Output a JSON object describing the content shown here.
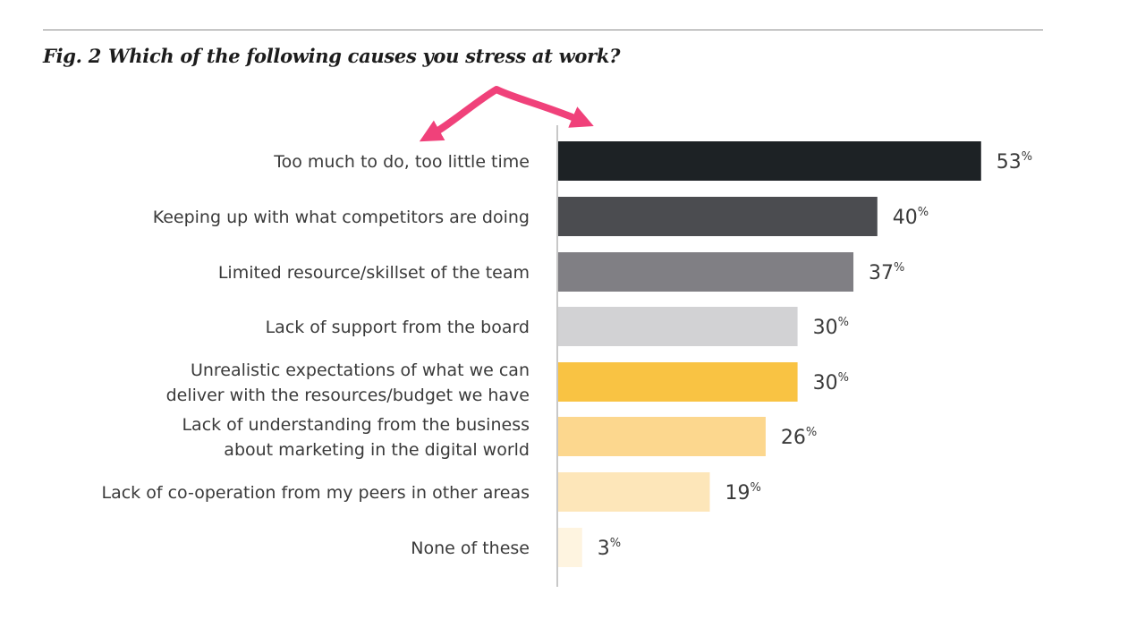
{
  "figure": {
    "number": "Fig. 2",
    "title": "Which of the following causes you stress at work?"
  },
  "chart_data": {
    "type": "bar",
    "orientation": "horizontal",
    "categories": [
      [
        "Too much to do, too little time"
      ],
      [
        "Keeping up with what competitors are doing"
      ],
      [
        "Limited resource/skillset of the team"
      ],
      [
        "Lack of support from the board"
      ],
      [
        "Unrealistic expectations of what we can",
        "deliver with the resources/budget we have"
      ],
      [
        "Lack of understanding from the business",
        "about marketing in the digital world"
      ],
      [
        "Lack of co-operation from my peers in other areas"
      ],
      [
        "None of these"
      ]
    ],
    "values": [
      53,
      40,
      37,
      30,
      30,
      26,
      19,
      3
    ],
    "value_suffix": "%",
    "colors": [
      "#1d2225",
      "#4b4c50",
      "#807f84",
      "#d2d2d4",
      "#f9c343",
      "#fcd78e",
      "#fde6b9",
      "#fef4e0"
    ],
    "xlim": [
      0,
      100
    ],
    "grid": false,
    "legend": "none",
    "annotations": [
      "pink double-headed arrow"
    ],
    "arrow_color": "#f0417a"
  }
}
